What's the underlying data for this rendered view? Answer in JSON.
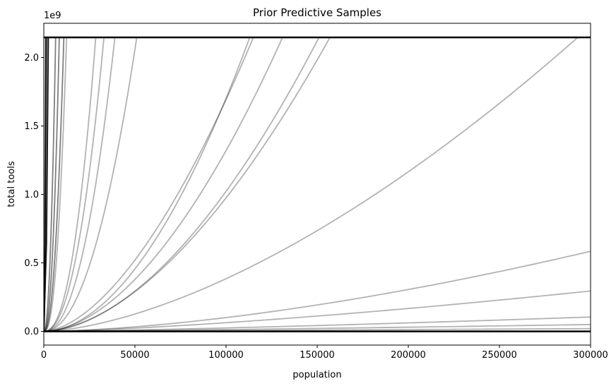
{
  "chart_data": {
    "type": "line",
    "title": "Prior Predictive Samples",
    "xlabel": "population",
    "ylabel": "total tools",
    "y_offset_text": "1e9",
    "xlim": [
      0,
      300000
    ],
    "ylim": [
      -0.1,
      2.25
    ],
    "x_ticks": [
      0,
      50000,
      100000,
      150000,
      200000,
      250000,
      300000
    ],
    "x_tick_labels": [
      "0",
      "50000",
      "100000",
      "150000",
      "200000",
      "250000",
      "300000"
    ],
    "y_ticks": [
      0.0,
      0.5,
      1.0,
      1.5,
      2.0
    ],
    "y_tick_labels": [
      "0.0",
      "0.5",
      "1.0",
      "1.5",
      "2.0"
    ],
    "cap": 2.147,
    "grid": false,
    "line_color": "#000000",
    "series": [
      {
        "type": "step",
        "x_reach": 1200,
        "opacity": 0.9
      },
      {
        "type": "step",
        "x_reach": 2500,
        "opacity": 0.9
      },
      {
        "type": "power",
        "x_reach": 1000,
        "exponent": 1.6,
        "opacity": 0.5
      },
      {
        "type": "power",
        "x_reach": 1800,
        "exponent": 1.7,
        "opacity": 0.5
      },
      {
        "type": "power",
        "x_reach": 6500,
        "exponent": 2.2,
        "opacity": 0.5
      },
      {
        "type": "power",
        "x_reach": 8500,
        "exponent": 2.3,
        "opacity": 0.5
      },
      {
        "type": "power",
        "x_reach": 11000,
        "exponent": 2.3,
        "opacity": 0.5
      },
      {
        "type": "power",
        "x_reach": 12500,
        "exponent": 2.4,
        "opacity": 0.3
      },
      {
        "type": "power",
        "x_reach": 28500,
        "exponent": 2.3,
        "opacity": 0.3
      },
      {
        "type": "power",
        "x_reach": 33000,
        "exponent": 2.2,
        "opacity": 0.3
      },
      {
        "type": "power",
        "x_reach": 39000,
        "exponent": 2.2,
        "opacity": 0.3
      },
      {
        "type": "power",
        "x_reach": 51000,
        "exponent": 2.1,
        "opacity": 0.3
      },
      {
        "type": "power",
        "x_reach": 113000,
        "exponent": 1.9,
        "opacity": 0.3
      },
      {
        "type": "power",
        "x_reach": 115000,
        "exponent": 1.7,
        "opacity": 0.3
      },
      {
        "type": "power",
        "x_reach": 131000,
        "exponent": 1.8,
        "opacity": 0.3
      },
      {
        "type": "power",
        "x_reach": 151000,
        "exponent": 1.8,
        "opacity": 0.3
      },
      {
        "type": "power",
        "x_reach": 157000,
        "exponent": 1.75,
        "opacity": 0.3
      },
      {
        "type": "power",
        "x_reach": 293000,
        "exponent": 1.6,
        "opacity": 0.3
      },
      {
        "type": "endpoint",
        "y_end": 0.585,
        "exponent": 1.6,
        "opacity": 0.3
      },
      {
        "type": "endpoint",
        "y_end": 0.295,
        "exponent": 1.4,
        "opacity": 0.3
      },
      {
        "type": "endpoint",
        "y_end": 0.105,
        "exponent": 1.3,
        "opacity": 0.3
      },
      {
        "type": "endpoint",
        "y_end": 0.05,
        "exponent": 1.2,
        "opacity": 0.3
      },
      {
        "type": "endpoint",
        "y_end": 0.02,
        "exponent": 1.0,
        "opacity": 0.3
      },
      {
        "type": "flat",
        "y": 0.0,
        "opacity": 1.0,
        "width": 2.5
      },
      {
        "type": "flat",
        "y": 2.147,
        "opacity": 1.0,
        "width": 2.5
      }
    ]
  }
}
